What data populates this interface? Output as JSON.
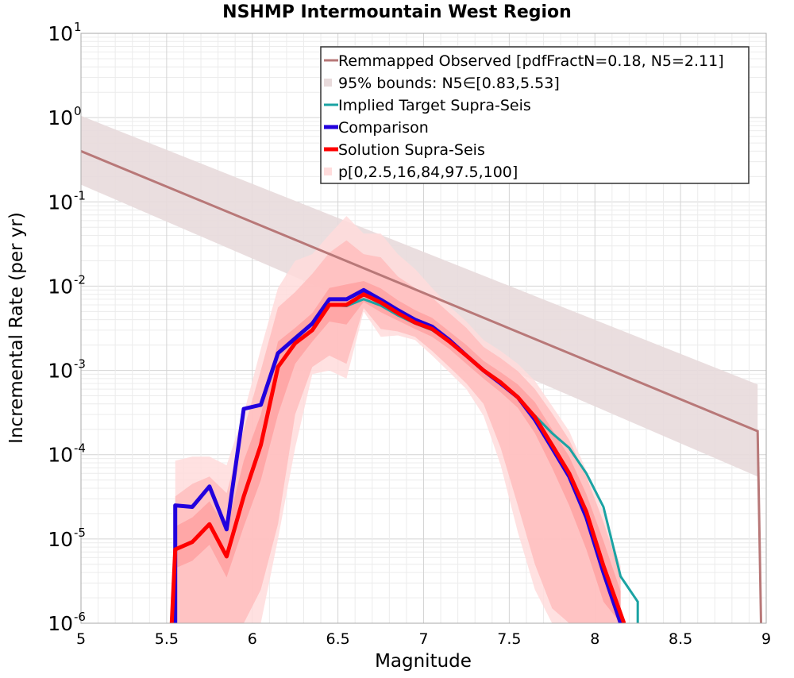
{
  "chart_data": {
    "type": "line",
    "title": "NSHMP Intermountain West Region",
    "xlabel": "Magnitude",
    "ylabel": "Incremental Rate (per yr)",
    "xlim": [
      5,
      9
    ],
    "ylim": [
      1e-06,
      10
    ],
    "yscale": "log",
    "grid": true,
    "legend_position": "top-right",
    "x_ticks": [
      "5",
      "5.5",
      "6",
      "6.5",
      "7",
      "7.5",
      "8",
      "8.5",
      "9"
    ],
    "y_ticks": [
      {
        "base": "10",
        "exp": "-6"
      },
      {
        "base": "10",
        "exp": "-5"
      },
      {
        "base": "10",
        "exp": "-4"
      },
      {
        "base": "10",
        "exp": "-3"
      },
      {
        "base": "10",
        "exp": "-2"
      },
      {
        "base": "10",
        "exp": "-1"
      },
      {
        "base": "10",
        "exp": "0"
      },
      {
        "base": "10",
        "exp": "1"
      }
    ],
    "legend": [
      "Remmapped Observed [pdfFractN=0.18, N5=2.11]",
      "95% bounds: N5∈[0.83,5.53]",
      "Implied Target Supra-Seis",
      "Comparison",
      "Solution Supra-Seis",
      "p[0,2.5,16,84,97.5,100]"
    ],
    "colors": {
      "observed": "#b87878",
      "observed_band": "#e8dadb",
      "target": "#1aa3a3",
      "comparison": "#2200dd",
      "solution": "#ff0000",
      "band_outer": "#ffdcdc",
      "band_mid": "#ffbcbc",
      "band_inner": "#ff9e9e"
    },
    "series": [
      {
        "name": "Remmapped Observed [pdfFractN=0.18, N5=2.11]",
        "x": [
          5.0,
          8.95,
          8.95,
          8.97
        ],
        "y": [
          0.4,
          0.00019,
          0.00019,
          1e-06
        ]
      },
      {
        "name": "95% bounds: N5∈[0.83,5.53]",
        "x": [
          5.0,
          8.95
        ],
        "y_low": [
          0.16,
          5.5e-05
        ],
        "y_high": [
          1.05,
          0.00068
        ]
      },
      {
        "name": "Implied Target Supra-Seis",
        "x": [
          6.35,
          6.45,
          6.55,
          6.65,
          6.75,
          6.85,
          6.95,
          7.05,
          7.15,
          7.25,
          7.35,
          7.45,
          7.55,
          7.65,
          7.75,
          7.85,
          7.95,
          8.05,
          8.15,
          8.25,
          8.25
        ],
        "y": [
          0.0034,
          0.006,
          0.0058,
          0.007,
          0.0059,
          0.0045,
          0.0036,
          0.003,
          0.0022,
          0.0015,
          0.001,
          0.00072,
          0.00048,
          0.00029,
          0.00018,
          0.00012,
          6e-05,
          2.4e-05,
          3.6e-06,
          1.8e-06,
          1e-06
        ]
      },
      {
        "name": "Comparison",
        "x": [
          5.55,
          5.55,
          5.65,
          5.75,
          5.85,
          5.95,
          6.05,
          6.15,
          6.25,
          6.35,
          6.45,
          6.55,
          6.65,
          6.75,
          6.85,
          6.95,
          7.05,
          7.15,
          7.25,
          7.35,
          7.45,
          7.55,
          7.65,
          7.75,
          7.85,
          7.95,
          8.05,
          8.15
        ],
        "y": [
          1e-06,
          2.5e-05,
          2.4e-05,
          4.2e-05,
          1.3e-05,
          0.00035,
          0.00039,
          0.0016,
          0.0024,
          0.0036,
          0.007,
          0.007,
          0.009,
          0.0069,
          0.0052,
          0.004,
          0.0033,
          0.0023,
          0.0015,
          0.001,
          0.0007,
          0.00048,
          0.00026,
          0.00012,
          5.5e-05,
          1.8e-05,
          4e-06,
          1e-06
        ]
      },
      {
        "name": "Solution Supra-Seis",
        "x": [
          5.53,
          5.55,
          5.65,
          5.75,
          5.85,
          5.95,
          6.05,
          6.15,
          6.25,
          6.35,
          6.45,
          6.55,
          6.65,
          6.75,
          6.85,
          6.95,
          7.05,
          7.15,
          7.25,
          7.35,
          7.45,
          7.55,
          7.65,
          7.75,
          7.85,
          7.95,
          8.05,
          8.15,
          8.17
        ],
        "y": [
          1e-06,
          7.5e-06,
          9.2e-06,
          1.5e-05,
          6.2e-06,
          3.2e-05,
          0.00013,
          0.0011,
          0.0021,
          0.003,
          0.006,
          0.006,
          0.008,
          0.0064,
          0.0048,
          0.0037,
          0.0031,
          0.0022,
          0.0015,
          0.001,
          0.00072,
          0.00048,
          0.00028,
          0.00013,
          6e-05,
          2.1e-05,
          4.8e-06,
          1.3e-06,
          1e-06
        ]
      },
      {
        "name": "p[0,2.5,16,84,97.5,100]",
        "x": [
          5.55,
          5.65,
          5.75,
          5.85,
          5.95,
          6.05,
          6.15,
          6.25,
          6.35,
          6.45,
          6.55,
          6.65,
          6.75,
          6.85,
          6.95,
          7.05,
          7.15,
          7.25,
          7.35,
          7.45,
          7.55,
          7.65,
          7.75,
          7.85,
          7.95,
          8.05,
          8.15
        ],
        "p0": [
          1e-06,
          1e-06,
          1e-06,
          1e-06,
          1e-06,
          1e-06,
          1e-05,
          0.00012,
          0.0009,
          0.001,
          0.0008,
          0.005,
          0.0025,
          0.0026,
          0.0023,
          0.0015,
          0.00095,
          0.0006,
          0.00029,
          7.5e-05,
          1.2e-05,
          2.5e-06,
          1e-06,
          1e-06,
          1e-06,
          1e-06,
          1e-06
        ],
        "p2_5": [
          1e-06,
          1e-06,
          1e-06,
          1e-06,
          1e-06,
          2.5e-06,
          1.5e-05,
          0.0003,
          0.0011,
          0.0015,
          0.0012,
          0.0055,
          0.0031,
          0.0029,
          0.0025,
          0.0017,
          0.0011,
          0.0007,
          0.0004,
          0.00012,
          2.5e-05,
          5e-06,
          1.5e-06,
          1e-06,
          1e-06,
          1e-06,
          1e-06
        ],
        "p16": [
          4.5e-06,
          5.5e-06,
          8.5e-06,
          3.5e-06,
          1.4e-05,
          5e-05,
          0.0003,
          0.0012,
          0.0022,
          0.0038,
          0.0035,
          0.0065,
          0.0049,
          0.0039,
          0.0031,
          0.0025,
          0.0018,
          0.0012,
          0.0008,
          0.00055,
          0.00036,
          0.00018,
          7e-05,
          2.5e-05,
          7.5e-06,
          1.8e-06,
          1e-06
        ],
        "p84": [
          1.4e-05,
          1.8e-05,
          2.8e-05,
          1.3e-05,
          8.5e-05,
          0.0003,
          0.0022,
          0.0032,
          0.0048,
          0.0095,
          0.0105,
          0.0115,
          0.0094,
          0.0068,
          0.0052,
          0.0042,
          0.0029,
          0.002,
          0.0013,
          0.00095,
          0.00068,
          0.00042,
          0.0002,
          9.5e-05,
          3.4e-05,
          9.5e-06,
          2.4e-06
        ],
        "p97_5": [
          3.2e-05,
          4.5e-05,
          5.5e-05,
          3.5e-05,
          0.0002,
          0.001,
          0.0056,
          0.0085,
          0.014,
          0.025,
          0.035,
          0.024,
          0.022,
          0.013,
          0.0095,
          0.0073,
          0.0048,
          0.0032,
          0.0019,
          0.0014,
          0.00098,
          0.0006,
          0.00031,
          0.00015,
          5.5e-05,
          1.6e-05,
          3.8e-06
        ],
        "p100": [
          8.5e-05,
          9.5e-05,
          9.5e-05,
          7.5e-05,
          0.00031,
          0.0018,
          0.0095,
          0.02,
          0.024,
          0.041,
          0.068,
          0.042,
          0.042,
          0.024,
          0.016,
          0.0095,
          0.0058,
          0.0038,
          0.0023,
          0.0017,
          0.0012,
          0.00075,
          0.00038,
          0.00019,
          6.5e-05,
          2.1e-05,
          4.8e-06
        ]
      }
    ]
  }
}
